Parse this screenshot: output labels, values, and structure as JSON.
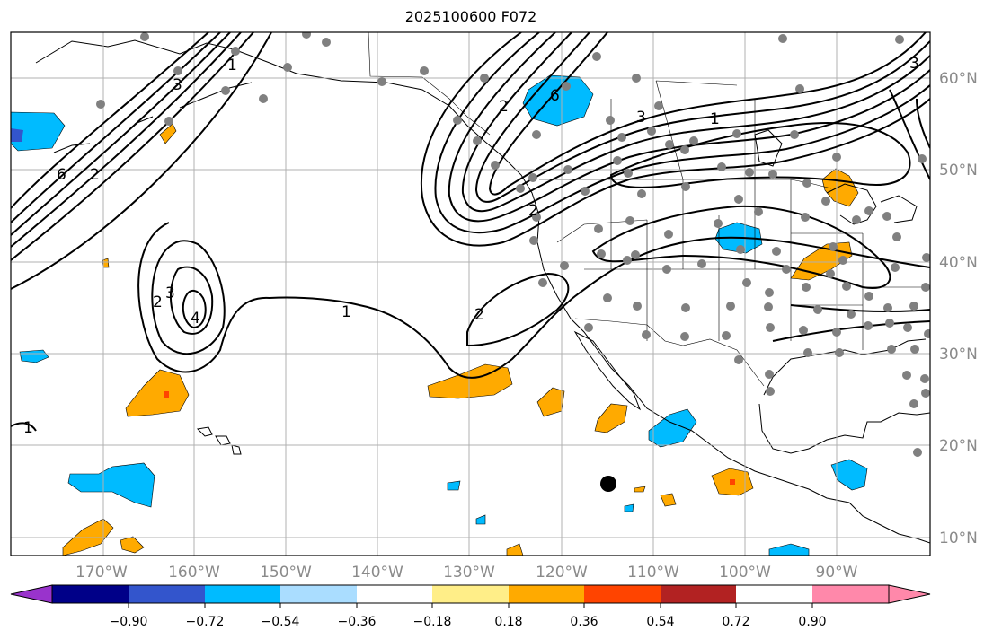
{
  "title": "2025100600 F072",
  "colors": {
    "grid": "#b0b0b0",
    "station": "#808080",
    "contour": "#000000",
    "coast": "#000000"
  },
  "lat_labels": [
    "60°N",
    "50°N",
    "40°N",
    "30°N",
    "20°N",
    "10°N"
  ],
  "lon_labels": [
    "170°W",
    "160°W",
    "150°W",
    "140°W",
    "130°W",
    "120°W",
    "110°W",
    "100°W",
    "90°W"
  ],
  "contour_labels": [
    "1",
    "1",
    "1",
    "1",
    "2",
    "2",
    "2",
    "2",
    "2",
    "3",
    "3",
    "3",
    "3",
    "4",
    "6",
    "6"
  ],
  "colorbar": {
    "colors": [
      "#9933cc",
      "#000088",
      "#3355cc",
      "#00bbff",
      "#aaddff",
      "#ffffff",
      "#ffee88",
      "#ffaa00",
      "#ff4400",
      "#b22222",
      "#ff88aa"
    ],
    "tick_labels": [
      "−0.90",
      "−0.72",
      "−0.54",
      "−0.36",
      "−0.18",
      "0.18",
      "0.36",
      "0.54",
      "0.72",
      "0.90"
    ]
  }
}
